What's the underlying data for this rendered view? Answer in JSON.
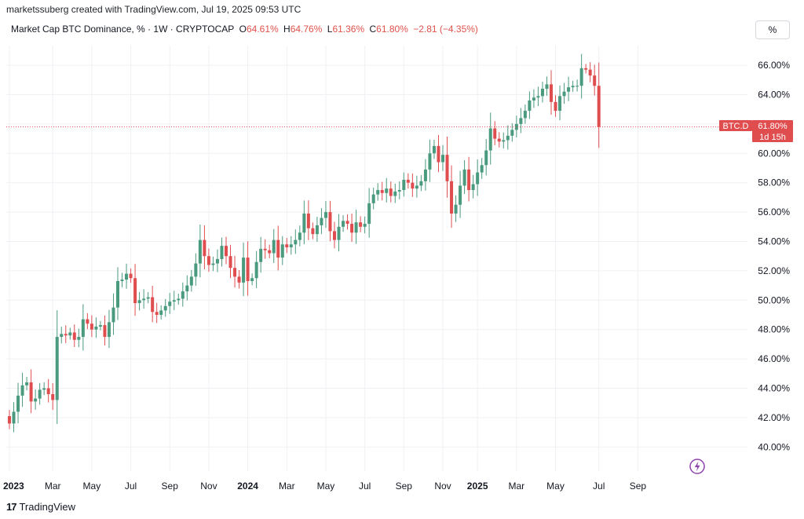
{
  "header": {
    "credit": "marketssuberg created with TradingView.com, Jul 19, 2025 09:53 UTC",
    "symbol": "Market Cap BTC Dominance, % · 1W · CRYPTOCAP",
    "open_label": "O",
    "open": "64.61%",
    "high_label": "H",
    "high": "64.76%",
    "low_label": "L",
    "low": "61.36%",
    "close_label": "C",
    "close": "61.80%",
    "change": "−2.81 (−4.35%)"
  },
  "toolbar": {
    "scale_button": "%"
  },
  "price_tag": {
    "symbol": "BTC.D",
    "value": "61.80%",
    "countdown": "1d 15h"
  },
  "footer": {
    "brand_logo": "17",
    "brand": "TradingView"
  },
  "icons": {
    "flash": "lightning-bolt-icon"
  },
  "colors": {
    "up": "#4a9a7e",
    "down": "#df4d4f",
    "grid": "#f0f1f4",
    "last_price_line": "#e04e4e"
  },
  "chart_data": {
    "type": "candlestick",
    "title": "Market Cap BTC Dominance, % · 1W · CRYPTOCAP",
    "ylim": [
      39.0,
      67.0
    ],
    "y_ticks": [
      "40.00%",
      "42.00%",
      "44.00%",
      "46.00%",
      "48.00%",
      "50.00%",
      "52.00%",
      "54.00%",
      "56.00%",
      "58.00%",
      "60.00%",
      "62.00%",
      "64.00%",
      "66.00%"
    ],
    "y_tick_values": [
      40,
      42,
      44,
      46,
      48,
      50,
      52,
      54,
      56,
      58,
      60,
      62,
      64,
      66
    ],
    "x_ticks": [
      {
        "label": "2023",
        "week": 0,
        "bold": true
      },
      {
        "label": "Mar",
        "week": 10
      },
      {
        "label": "May",
        "week": 19
      },
      {
        "label": "Jul",
        "week": 28
      },
      {
        "label": "Sep",
        "week": 37
      },
      {
        "label": "Nov",
        "week": 46
      },
      {
        "label": "2024",
        "week": 55,
        "bold": true
      },
      {
        "label": "Mar",
        "week": 64
      },
      {
        "label": "May",
        "week": 73
      },
      {
        "label": "Jul",
        "week": 82
      },
      {
        "label": "Sep",
        "week": 91
      },
      {
        "label": "Nov",
        "week": 100
      },
      {
        "label": "2025",
        "week": 108,
        "bold": true
      },
      {
        "label": "Mar",
        "week": 117
      },
      {
        "label": "May",
        "week": 126
      },
      {
        "label": "Jul",
        "week": 136
      },
      {
        "label": "Sep",
        "week": 145
      }
    ],
    "last_price": 61.8,
    "grid": true,
    "close": [
      41.6,
      42.4,
      43.5,
      44.2,
      44.4,
      43.1,
      43.3,
      43.9,
      44.0,
      43.6,
      43.2,
      47.5,
      47.7,
      47.6,
      47.8,
      47.3,
      47.5,
      48.7,
      48.4,
      48.0,
      48.2,
      48.3,
      47.5,
      48.5,
      49.5,
      51.3,
      51.4,
      51.8,
      51.5,
      49.8,
      50.0,
      50.1,
      50.2,
      49.2,
      49.0,
      49.3,
      49.6,
      49.9,
      50.0,
      50.1,
      50.6,
      51.0,
      51.6,
      52.5,
      54.1,
      53.0,
      52.4,
      52.5,
      52.8,
      53.7,
      53.0,
      52.2,
      51.6,
      51.2,
      52.9,
      51.3,
      51.5,
      52.6,
      53.5,
      53.4,
      53.2,
      54.1,
      52.9,
      53.8,
      53.6,
      53.8,
      54.1,
      54.6,
      55.9,
      54.9,
      54.5,
      55.1,
      55.6,
      56.0,
      54.7,
      54.1,
      55.0,
      55.4,
      55.2,
      54.6,
      55.3,
      55.0,
      55.2,
      56.6,
      57.2,
      57.5,
      57.3,
      57.6,
      57.1,
      57.4,
      57.5,
      58.2,
      58.0,
      57.6,
      57.8,
      58.1,
      58.9,
      60.0,
      60.5,
      59.4,
      59.9,
      58.1,
      55.9,
      56.5,
      57.8,
      58.9,
      57.5,
      57.9,
      58.7,
      59.2,
      60.2,
      61.7,
      61.0,
      60.8,
      60.9,
      61.2,
      61.6,
      62.0,
      62.4,
      62.9,
      63.6,
      63.8,
      63.9,
      64.4,
      64.7,
      63.5,
      62.9,
      63.9,
      64.2,
      64.5,
      64.6,
      64.6,
      65.8,
      65.7,
      65.3,
      64.6,
      61.8
    ],
    "open_first": 42.1
  }
}
